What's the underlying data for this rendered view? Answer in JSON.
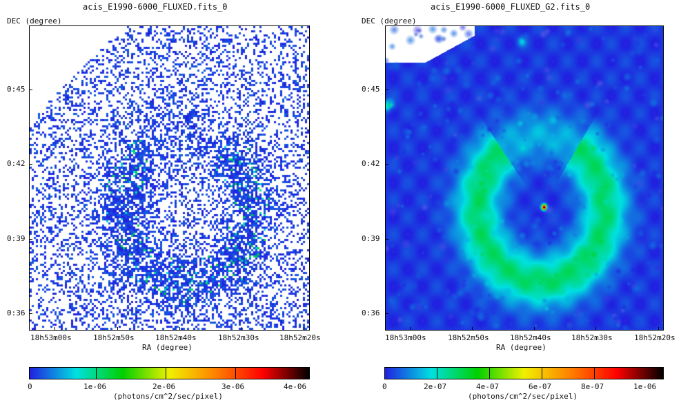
{
  "panels": [
    {
      "title": "acis_E1990-6000_FLUXED.fits_0",
      "ylabel": "DEC (degree)",
      "xlabel": "RA (degree)",
      "yticks": [
        "0:45",
        "0:42",
        "0:39",
        "0:36"
      ],
      "xticks": [
        "18h53m00s",
        "18h52m50s",
        "18h52m40s",
        "18h52m30s",
        "18h52m20s"
      ],
      "colorbar_ticks": [
        "0",
        "1e-06",
        "2e-06",
        "3e-06",
        "4e-06"
      ],
      "colorbar_label": "(photons/cm^2/sec/pixel)",
      "render": "noisy"
    },
    {
      "title": "acis_E1990-6000_FLUXED_G2.fits_0",
      "ylabel": "DEC (degree)",
      "xlabel": "RA (degree)",
      "yticks": [
        "0:45",
        "0:42",
        "0:39",
        "0:36"
      ],
      "xticks": [
        "18h53m00s",
        "18h52m50s",
        "18h52m40s",
        "18h52m30s",
        "18h52m20s"
      ],
      "colorbar_ticks": [
        "0",
        "2e-07",
        "4e-07",
        "6e-07",
        "8e-07",
        "1e-06"
      ],
      "colorbar_label": "(photons/cm^2/sec/pixel)",
      "render": "smoothed"
    }
  ],
  "colors": {
    "colormap": [
      "#ffffff",
      "#2020e0",
      "#00e0e0",
      "#00d000",
      "#f0f000",
      "#ff8000",
      "#ff0000",
      "#000000"
    ]
  }
}
